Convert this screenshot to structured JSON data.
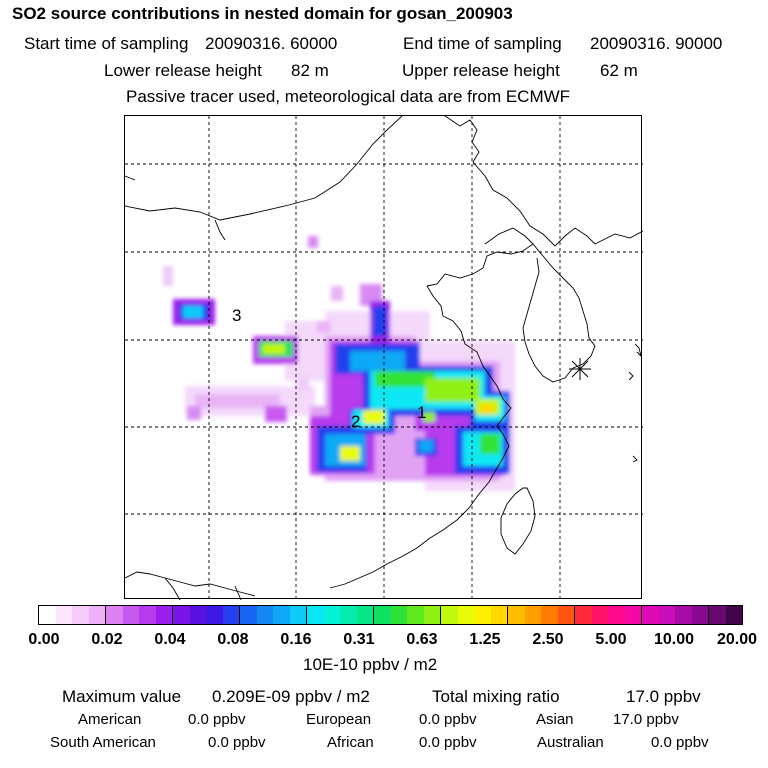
{
  "header": {
    "title": "SO2 source contributions in nested domain for gosan_200903",
    "start_time_label": "Start time of sampling",
    "start_time_value": "20090316. 60000",
    "end_time_label": "End time of sampling",
    "end_time_value": "20090316. 90000",
    "lower_release_label": "Lower release height",
    "lower_release_value": "82 m",
    "upper_release_label": "Upper release height",
    "upper_release_value": "62 m",
    "passive_note": "Passive tracer used, meteorological data are from ECMWF"
  },
  "map": {
    "source_labels": [
      "1",
      "2",
      "3"
    ],
    "receptor": "gosan-receptor"
  },
  "colorbar": {
    "ticks": [
      "0.00",
      "0.02",
      "0.04",
      "0.08",
      "0.16",
      "0.31",
      "0.63",
      "1.25",
      "2.50",
      "5.00",
      "10.00",
      "20.00"
    ],
    "colors": [
      "#ffffff",
      "#fbe6fd",
      "#f5ccfa",
      "#eeb0f6",
      "#dc82f2",
      "#c95af0",
      "#b83aee",
      "#9c1eea",
      "#7a14e6",
      "#5a12e2",
      "#3c18e6",
      "#2440ee",
      "#1a64f2",
      "#1487f4",
      "#10a8f6",
      "#0ecaf8",
      "#08e8f4",
      "#04f2d8",
      "#04ecb0",
      "#06e688",
      "#10e060",
      "#30e236",
      "#60ea1e",
      "#90f014",
      "#c0f80e",
      "#e8fc08",
      "#fff000",
      "#ffd800",
      "#ffbe00",
      "#ffa000",
      "#ff7c00",
      "#ff5414",
      "#ff2a3c",
      "#ff1466",
      "#ff0a8c",
      "#f408a6",
      "#e00ab4",
      "#c80eb8",
      "#a80aa8",
      "#880a90",
      "#680870",
      "#400448"
    ],
    "units": "10E-10 ppbv / m2"
  },
  "stats": {
    "max_label": "Maximum value",
    "max_value": "0.209E-09 ppbv / m2",
    "total_label": "Total mixing ratio",
    "total_value": "17.0 ppbv",
    "american_label": "American",
    "american_value": "0.0 ppbv",
    "european_label": "European",
    "european_value": "0.0 ppbv",
    "asian_label": "Asian",
    "asian_value": "17.0 ppbv",
    "south_american_label": "South American",
    "south_american_value": "0.0 ppbv",
    "african_label": "African",
    "african_value": "0.0 ppbv",
    "australian_label": "Australian",
    "australian_value": "0.0 ppbv"
  }
}
